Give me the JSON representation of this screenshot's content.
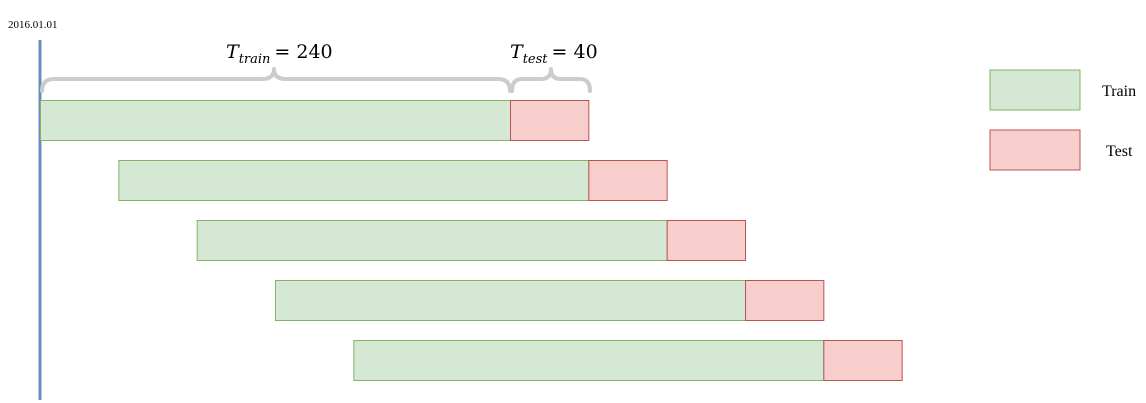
{
  "start_date": "2016.01.01",
  "train_brace": {
    "symbol": "T",
    "subscript": "train",
    "value": "= 240"
  },
  "test_brace": {
    "symbol": "T",
    "subscript": "test",
    "value": "= 40"
  },
  "windows": {
    "train_length": 240,
    "test_length": 40,
    "step": 40,
    "count": 5
  },
  "legend": {
    "train_label": "Train",
    "test_label": "Test"
  },
  "colors": {
    "train_fill": "#d5e8d4",
    "train_stroke": "#82b366",
    "test_fill": "#f8cecc",
    "test_stroke": "#b85450",
    "timeline": "#6c8ebf",
    "brace": "#cccccc"
  }
}
